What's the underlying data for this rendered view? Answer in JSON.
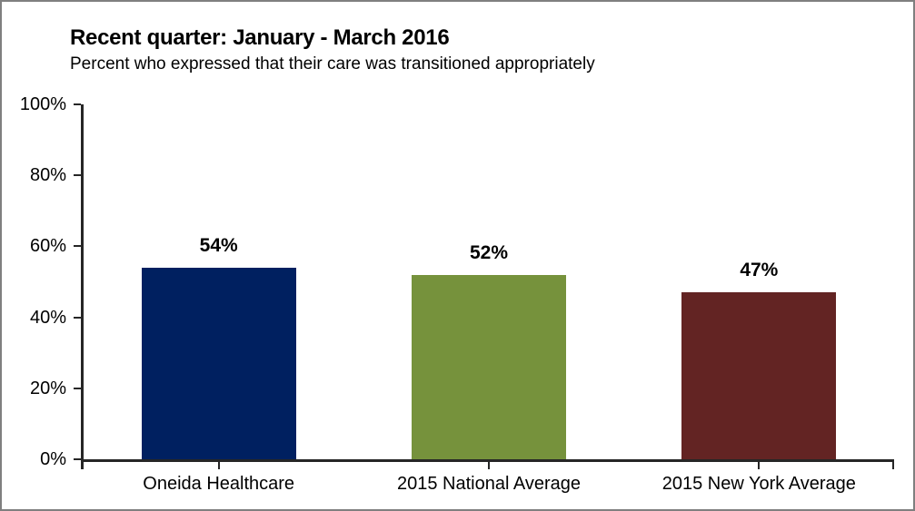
{
  "chart": {
    "title": "Recent quarter: January - March 2016",
    "subtitle": "Percent who expressed that their care was transitioned appropriately"
  },
  "chart_data": {
    "type": "bar",
    "title": "Recent quarter: January - March 2016",
    "subtitle": "Percent who expressed that their care was transitioned appropriately",
    "categories": [
      "Oneida Healthcare",
      "2015 National Average",
      "2015 New York Average"
    ],
    "values": [
      54,
      52,
      47
    ],
    "value_labels": [
      "54%",
      "52%",
      "47%"
    ],
    "bar_colors": [
      "#002060",
      "#76923C",
      "#632423"
    ],
    "xlabel": "",
    "ylabel": "",
    "ylim": [
      0,
      100
    ],
    "ytick_values": [
      0,
      20,
      40,
      60,
      80,
      100
    ],
    "ytick_labels": [
      "0%",
      "20%",
      "40%",
      "60%",
      "80%",
      "100%"
    ],
    "grid": false,
    "legend": false,
    "axis_color": "#262626",
    "frame_border_color": "#7f7f7f",
    "background_color": "#ffffff",
    "text_color": "#000000"
  }
}
